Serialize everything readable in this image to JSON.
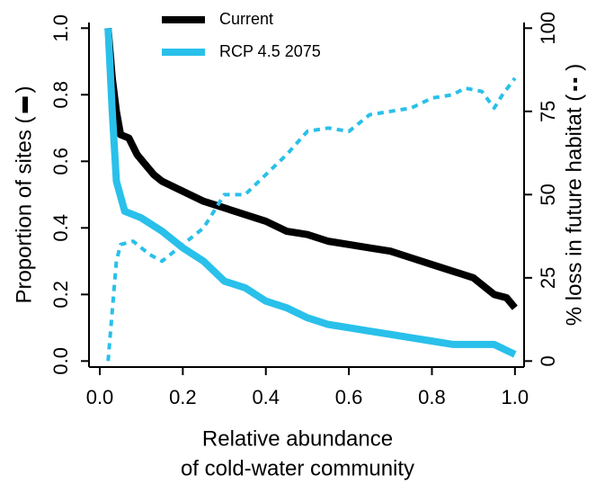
{
  "chart_data": {
    "type": "line",
    "xlabel": [
      "Relative abundance",
      "of cold-water community"
    ],
    "ylabel": [
      "Proportion of sites (",
      ")"
    ],
    "y2label": [
      "% loss in future habitat (",
      ")"
    ],
    "xlim": [
      -0.026,
      1.022
    ],
    "ylim": [
      -0.018,
      1.017
    ],
    "y2lim": [
      -1.8,
      101.7
    ],
    "xticks": [
      {
        "value": 0,
        "label": "0.0"
      },
      {
        "value": 0.2,
        "label": "0.2"
      },
      {
        "value": 0.4,
        "label": "0.4"
      },
      {
        "value": 0.6,
        "label": "0.6"
      },
      {
        "value": 0.8,
        "label": "0.8"
      },
      {
        "value": 1,
        "label": "1.0"
      }
    ],
    "yticks": [
      {
        "value": 0,
        "label": "0.0"
      },
      {
        "value": 0.2,
        "label": "0.2"
      },
      {
        "value": 0.4,
        "label": "0.4"
      },
      {
        "value": 0.6,
        "label": "0.6"
      },
      {
        "value": 0.8,
        "label": "0.8"
      },
      {
        "value": 1,
        "label": "1.0"
      }
    ],
    "y2ticks": [
      0,
      25,
      50,
      75,
      100
    ],
    "series": [
      {
        "name": "Current",
        "color": "#000000",
        "dash": false,
        "x": [
          0.02,
          0.03,
          0.04,
          0.05,
          0.07,
          0.09,
          0.11,
          0.13,
          0.15,
          0.2,
          0.25,
          0.3,
          0.35,
          0.4,
          0.45,
          0.5,
          0.55,
          0.6,
          0.65,
          0.7,
          0.75,
          0.8,
          0.85,
          0.9,
          0.95,
          0.98,
          1.0
        ],
        "values": [
          1.0,
          0.85,
          0.75,
          0.68,
          0.67,
          0.62,
          0.59,
          0.56,
          0.54,
          0.51,
          0.48,
          0.46,
          0.44,
          0.42,
          0.39,
          0.38,
          0.36,
          0.35,
          0.34,
          0.33,
          0.31,
          0.29,
          0.27,
          0.25,
          0.2,
          0.19,
          0.16
        ]
      },
      {
        "name": "RCP 4.5 2075",
        "color": "#29c0ea",
        "dash": false,
        "x": [
          0.02,
          0.03,
          0.04,
          0.06,
          0.1,
          0.15,
          0.2,
          0.25,
          0.3,
          0.35,
          0.4,
          0.45,
          0.5,
          0.55,
          0.6,
          0.65,
          0.7,
          0.75,
          0.8,
          0.85,
          0.9,
          0.95,
          1.0
        ],
        "values": [
          1.0,
          0.75,
          0.54,
          0.45,
          0.43,
          0.39,
          0.34,
          0.3,
          0.24,
          0.22,
          0.18,
          0.16,
          0.13,
          0.11,
          0.1,
          0.09,
          0.08,
          0.07,
          0.06,
          0.05,
          0.05,
          0.05,
          0.02
        ]
      },
      {
        "color": "#29c0ea",
        "dash": true,
        "axis": "y2",
        "x": [
          0.02,
          0.03,
          0.04,
          0.05,
          0.08,
          0.12,
          0.15,
          0.18,
          0.22,
          0.25,
          0.3,
          0.35,
          0.4,
          0.45,
          0.5,
          0.55,
          0.6,
          0.65,
          0.7,
          0.75,
          0.8,
          0.85,
          0.88,
          0.92,
          0.95,
          0.97,
          1.0
        ],
        "values": [
          0,
          15,
          30,
          35,
          36,
          32,
          30,
          33,
          37,
          40,
          50,
          50,
          56,
          62,
          69,
          70,
          69,
          74,
          75,
          76,
          79,
          80,
          82,
          81,
          76,
          80,
          85
        ]
      }
    ]
  }
}
